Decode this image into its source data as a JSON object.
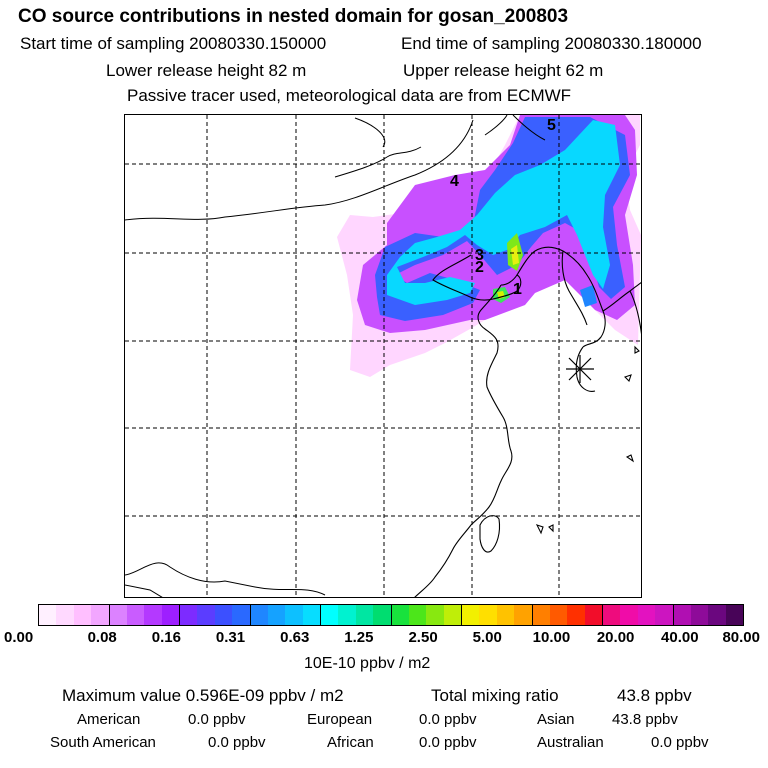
{
  "header": {
    "title": "CO  source contributions in nested domain for gosan_200803",
    "start_label": "Start time of sampling 20080330.150000",
    "end_label": "End time of sampling 20080330.180000",
    "lower_label": "Lower release height   82 m",
    "upper_label": "Upper release height   62 m",
    "note": "Passive tracer used, meteorological data are from ECMWF"
  },
  "map": {
    "markers": [
      "1",
      "2",
      "3",
      "4",
      "5"
    ],
    "receptor_symbol": "✳"
  },
  "colorbar": {
    "colors": [
      "#fff0ff",
      "#ffd9ff",
      "#ffbfff",
      "#f2a6ff",
      "#dc82ff",
      "#c95cff",
      "#b439ff",
      "#9e1fff",
      "#7d2bff",
      "#5b3dff",
      "#3c50ff",
      "#2a69ff",
      "#1f86ff",
      "#15a2ff",
      "#0dc0ff",
      "#07ddff",
      "#00ffff",
      "#00f2d0",
      "#00e6a2",
      "#00dd70",
      "#18e23d",
      "#4ce61a",
      "#88e810",
      "#bfee08",
      "#f2f000",
      "#ffdf00",
      "#ffc200",
      "#ffa200",
      "#ff7f00",
      "#ff5a00",
      "#ff3000",
      "#f20d2a",
      "#ee0c7d",
      "#f00ca8",
      "#e312c0",
      "#cc15c0",
      "#b00fb2",
      "#8e0b99",
      "#6b077f",
      "#480458"
    ],
    "ticks": [
      "0.00",
      "0.08",
      "0.16",
      "0.31",
      "0.63",
      "1.25",
      "2.50",
      "5.00",
      "10.00",
      "20.00",
      "40.00",
      "80.00"
    ],
    "unit": "10E-10 ppbv / m2"
  },
  "stats": {
    "max_label": "Maximum value  0.596E-09 ppbv / m2",
    "total_label": "Total mixing ratio",
    "total_value": "43.8 ppbv",
    "regions": [
      {
        "name": "American",
        "value": "0.0 ppbv"
      },
      {
        "name": "European",
        "value": "0.0 ppbv"
      },
      {
        "name": "Asian",
        "value": "43.8 ppbv"
      },
      {
        "name": "South American",
        "value": "0.0 ppbv"
      },
      {
        "name": "African",
        "value": "0.0 ppbv"
      },
      {
        "name": "Australian",
        "value": "0.0 ppbv"
      }
    ]
  }
}
